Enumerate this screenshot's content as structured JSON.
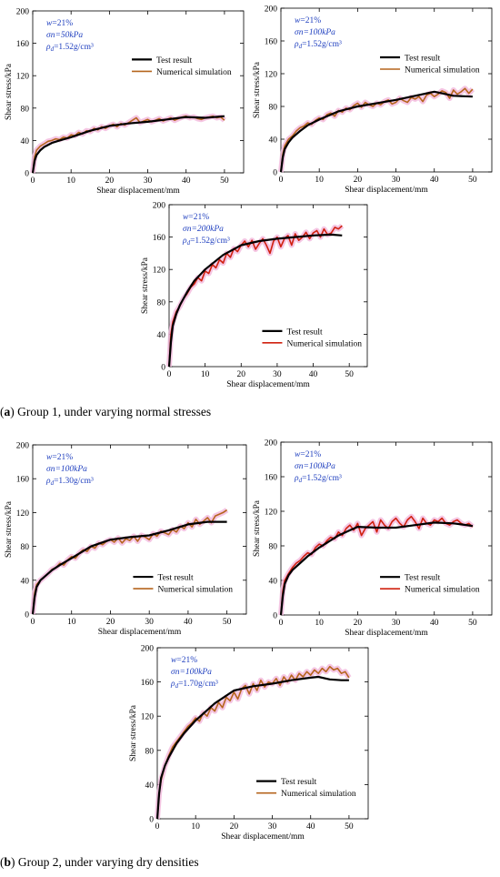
{
  "captions": {
    "a_letter": "a",
    "a_text": "Group 1, under varying normal stresses",
    "b_letter": "b",
    "b_text": "Group 2, under varying dry densities"
  },
  "colors": {
    "test": "#000000",
    "simulation": "#b5651d",
    "simulation_alt": "#d0200f",
    "shade": "#f2b8dc",
    "params": "#1f3fbf"
  },
  "chart_data": [
    {
      "id": "a1",
      "type": "line",
      "xlabel": "Shear displacement/mm",
      "ylabel": "Shear stress/kPa",
      "xlim": [
        0,
        55
      ],
      "ylim": [
        0,
        200
      ],
      "xticks": [
        "0",
        "10",
        "20",
        "30",
        "40",
        "50"
      ],
      "yticks": [
        "0",
        "40",
        "80",
        "120",
        "160",
        "200"
      ],
      "params": [
        "w=21%",
        "σn=50kPa",
        "ρd=1.52g/cm³"
      ],
      "legend": [
        "Test result",
        "Numerical simulation"
      ],
      "legend_position": "upper-right",
      "series": [
        {
          "name": "Test result",
          "role": "test",
          "x": [
            0,
            0.5,
            1,
            2,
            3,
            5,
            7,
            10,
            15,
            20,
            25,
            30,
            35,
            40,
            45,
            50
          ],
          "y": [
            0,
            15,
            22,
            28,
            32,
            37,
            40,
            44,
            52,
            58,
            61,
            63,
            66,
            69,
            68,
            70
          ]
        },
        {
          "name": "Numerical simulation",
          "role": "simulation",
          "x": [
            0,
            0.5,
            1,
            2,
            3,
            4,
            5,
            6,
            7,
            8,
            9,
            10,
            11,
            12,
            13,
            14,
            15,
            16,
            17,
            18,
            19,
            20,
            21,
            22,
            23,
            24,
            25,
            26,
            27,
            28,
            29,
            30,
            31,
            32,
            33,
            34,
            35,
            36,
            37,
            38,
            39,
            40,
            41,
            42,
            43,
            44,
            45,
            46,
            47,
            48,
            49,
            50
          ],
          "y": [
            0,
            20,
            28,
            33,
            36,
            39,
            40,
            42,
            41,
            44,
            43,
            47,
            46,
            50,
            48,
            52,
            51,
            55,
            53,
            57,
            55,
            58,
            60,
            57,
            61,
            59,
            62,
            65,
            68,
            62,
            64,
            66,
            63,
            65,
            67,
            64,
            66,
            68,
            65,
            67,
            69,
            70,
            68,
            69,
            67,
            66,
            68,
            69,
            70,
            68,
            69,
            65
          ]
        }
      ]
    },
    {
      "id": "a2",
      "type": "line",
      "xlabel": "Shear displacement/mm",
      "ylabel": "Shear stress/kPa",
      "xlim": [
        0,
        55
      ],
      "ylim": [
        0,
        200
      ],
      "xticks": [
        "0",
        "10",
        "20",
        "30",
        "40",
        "50"
      ],
      "yticks": [
        "0",
        "40",
        "80",
        "120",
        "160",
        "200"
      ],
      "params": [
        "w=21%",
        "σn=100kPa",
        "ρd=1.52g/cm³"
      ],
      "legend": [
        "Test result",
        "Numerical simulation"
      ],
      "legend_position": "upper-right",
      "series": [
        {
          "name": "Test result",
          "role": "test",
          "x": [
            0,
            0.5,
            1,
            2,
            3,
            5,
            7,
            10,
            15,
            20,
            25,
            30,
            35,
            40,
            42,
            45,
            50
          ],
          "y": [
            0,
            18,
            28,
            36,
            42,
            50,
            57,
            64,
            74,
            80,
            84,
            88,
            93,
            98,
            96,
            93,
            92
          ]
        },
        {
          "name": "Numerical simulation",
          "role": "simulation",
          "x": [
            0,
            0.5,
            1,
            2,
            3,
            4,
            5,
            6,
            7,
            8,
            9,
            10,
            11,
            12,
            13,
            14,
            15,
            16,
            17,
            18,
            19,
            20,
            21,
            22,
            23,
            24,
            25,
            26,
            27,
            28,
            29,
            30,
            31,
            32,
            33,
            34,
            35,
            36,
            37,
            38,
            39,
            40,
            41,
            42,
            43,
            44,
            45,
            46,
            47,
            48,
            49,
            50
          ],
          "y": [
            0,
            22,
            32,
            40,
            44,
            50,
            54,
            56,
            60,
            58,
            63,
            66,
            64,
            70,
            72,
            68,
            75,
            73,
            78,
            76,
            81,
            84,
            79,
            85,
            82,
            80,
            84,
            82,
            86,
            88,
            83,
            85,
            90,
            87,
            85,
            91,
            89,
            92,
            86,
            94,
            96,
            92,
            95,
            99,
            97,
            90,
            100,
            95,
            98,
            102,
            96,
            101
          ]
        }
      ]
    },
    {
      "id": "a3",
      "type": "line",
      "xlabel": "Shear displacement/mm",
      "ylabel": "Shear stress/kPa",
      "xlim": [
        0,
        55
      ],
      "ylim": [
        0,
        200
      ],
      "xticks": [
        "0",
        "10",
        "20",
        "30",
        "40",
        "50"
      ],
      "yticks": [
        "0",
        "40",
        "80",
        "120",
        "160",
        "200"
      ],
      "params": [
        "w=21%",
        "σn=200kPa",
        "ρd=1.52g/cm³"
      ],
      "legend": [
        "Test result",
        "Numerical simulation"
      ],
      "legend_position": "lower-right",
      "series": [
        {
          "name": "Test result",
          "role": "test",
          "x": [
            0,
            0.5,
            1,
            2,
            3,
            5,
            7,
            10,
            15,
            20,
            25,
            30,
            35,
            40,
            45,
            48
          ],
          "y": [
            0,
            30,
            50,
            65,
            76,
            92,
            106,
            120,
            138,
            150,
            155,
            158,
            160,
            162,
            163,
            162
          ]
        },
        {
          "name": "Numerical simulation",
          "role": "simulation_alt",
          "x": [
            0,
            0.5,
            1,
            2,
            3,
            4,
            5,
            6,
            7,
            8,
            9,
            10,
            11,
            12,
            13,
            14,
            15,
            16,
            17,
            18,
            19,
            20,
            21,
            22,
            23,
            24,
            25,
            26,
            27,
            28,
            29,
            30,
            31,
            32,
            33,
            34,
            35,
            36,
            37,
            38,
            39,
            40,
            41,
            42,
            43,
            44,
            45,
            46,
            47,
            48
          ],
          "y": [
            0,
            40,
            55,
            68,
            75,
            84,
            90,
            98,
            102,
            110,
            106,
            118,
            115,
            126,
            122,
            132,
            128,
            140,
            135,
            146,
            142,
            150,
            155,
            148,
            156,
            145,
            152,
            158,
            150,
            140,
            155,
            160,
            148,
            158,
            162,
            150,
            164,
            156,
            160,
            166,
            158,
            165,
            168,
            160,
            170,
            163,
            165,
            172,
            170,
            174
          ]
        }
      ]
    },
    {
      "id": "b1",
      "type": "line",
      "xlabel": "Shear displacement/mm",
      "ylabel": "Shear stress/kPa",
      "xlim": [
        0,
        55
      ],
      "ylim": [
        0,
        200
      ],
      "xticks": [
        "0",
        "10",
        "20",
        "30",
        "40",
        "50"
      ],
      "yticks": [
        "0",
        "40",
        "80",
        "120",
        "160",
        "200"
      ],
      "params": [
        "w=21%",
        "σn=100kPa",
        "ρd=1.30g/cm³"
      ],
      "legend": [
        "Test result",
        "Numerical simulation"
      ],
      "legend_position": "lower-right",
      "series": [
        {
          "name": "Test result",
          "role": "test",
          "x": [
            0,
            0.5,
            1,
            2,
            3,
            5,
            7,
            10,
            15,
            20,
            25,
            30,
            35,
            40,
            45,
            50
          ],
          "y": [
            0,
            20,
            32,
            40,
            44,
            52,
            58,
            66,
            80,
            88,
            91,
            93,
            99,
            106,
            109,
            109
          ]
        },
        {
          "name": "Numerical simulation",
          "role": "simulation",
          "x": [
            0,
            0.5,
            1,
            2,
            3,
            4,
            5,
            6,
            7,
            8,
            9,
            10,
            11,
            12,
            13,
            14,
            15,
            16,
            17,
            18,
            19,
            20,
            21,
            22,
            23,
            24,
            25,
            26,
            27,
            28,
            29,
            30,
            31,
            32,
            33,
            34,
            35,
            36,
            37,
            38,
            39,
            40,
            41,
            42,
            43,
            44,
            45,
            46,
            47,
            48,
            49,
            50
          ],
          "y": [
            0,
            25,
            35,
            40,
            44,
            48,
            53,
            55,
            60,
            58,
            64,
            68,
            66,
            72,
            76,
            74,
            80,
            78,
            84,
            82,
            86,
            88,
            85,
            90,
            84,
            89,
            87,
            92,
            86,
            93,
            91,
            88,
            95,
            92,
            98,
            96,
            94,
            100,
            97,
            104,
            101,
            108,
            103,
            112,
            106,
            110,
            114,
            108,
            116,
            118,
            120,
            123
          ]
        }
      ]
    },
    {
      "id": "b2",
      "type": "line",
      "xlabel": "Shear displacement/mm",
      "ylabel": "Shear stress/kPa",
      "xlim": [
        0,
        55
      ],
      "ylim": [
        0,
        200
      ],
      "xticks": [
        "0",
        "10",
        "20",
        "30",
        "40",
        "50"
      ],
      "yticks": [
        "0",
        "40",
        "80",
        "120",
        "160",
        "200"
      ],
      "params": [
        "w=21%",
        "σn=100kPa",
        "ρd=1.52g/cm³"
      ],
      "legend": [
        "Test result",
        "Numerical simulation"
      ],
      "legend_position": "lower-right",
      "series": [
        {
          "name": "Test result",
          "role": "test",
          "x": [
            0,
            0.5,
            1,
            2,
            3,
            5,
            7,
            10,
            15,
            18,
            20,
            25,
            30,
            35,
            40,
            45,
            50
          ],
          "y": [
            0,
            22,
            36,
            46,
            52,
            60,
            68,
            78,
            92,
            98,
            102,
            101,
            101,
            104,
            107,
            106,
            103
          ]
        },
        {
          "name": "Numerical simulation",
          "role": "simulation_alt",
          "x": [
            0,
            0.5,
            1,
            2,
            3,
            4,
            5,
            6,
            7,
            8,
            9,
            10,
            11,
            12,
            13,
            14,
            15,
            16,
            17,
            18,
            19,
            20,
            21,
            22,
            23,
            24,
            25,
            26,
            27,
            28,
            29,
            30,
            31,
            32,
            33,
            34,
            35,
            36,
            37,
            38,
            39,
            40,
            41,
            42,
            43,
            44,
            45,
            46,
            47,
            48,
            49,
            50
          ],
          "y": [
            0,
            28,
            40,
            48,
            55,
            60,
            63,
            68,
            72,
            70,
            78,
            82,
            80,
            86,
            90,
            88,
            96,
            92,
            100,
            104,
            98,
            106,
            92,
            100,
            104,
            108,
            96,
            110,
            104,
            100,
            108,
            112,
            106,
            102,
            110,
            114,
            108,
            100,
            112,
            106,
            104,
            110,
            108,
            112,
            106,
            104,
            108,
            110,
            106,
            104,
            106,
            102
          ]
        }
      ]
    },
    {
      "id": "b3",
      "type": "line",
      "xlabel": "Shear displacement/mm",
      "ylabel": "Shear stress/kPa",
      "xlim": [
        0,
        55
      ],
      "ylim": [
        0,
        200
      ],
      "xticks": [
        "0",
        "10",
        "20",
        "30",
        "40",
        "50"
      ],
      "yticks": [
        "0",
        "40",
        "80",
        "120",
        "160",
        "200"
      ],
      "params": [
        "w=21%",
        "σn=100kPa",
        "ρd=1.70g/cm³"
      ],
      "legend": [
        "Test result",
        "Numerical simulation"
      ],
      "legend_position": "lower-right",
      "series": [
        {
          "name": "Test result",
          "role": "test",
          "x": [
            0,
            0.5,
            1,
            2,
            3,
            5,
            7,
            10,
            15,
            20,
            25,
            30,
            35,
            40,
            42,
            45,
            48,
            50
          ],
          "y": [
            0,
            30,
            48,
            62,
            72,
            88,
            100,
            115,
            135,
            150,
            155,
            158,
            162,
            165,
            166,
            163,
            162,
            162
          ]
        },
        {
          "name": "Numerical simulation",
          "role": "simulation",
          "x": [
            0,
            0.5,
            1,
            2,
            3,
            4,
            5,
            6,
            7,
            8,
            9,
            10,
            11,
            12,
            13,
            14,
            15,
            16,
            17,
            18,
            19,
            20,
            21,
            22,
            23,
            24,
            25,
            26,
            27,
            28,
            29,
            30,
            31,
            32,
            33,
            34,
            35,
            36,
            37,
            38,
            39,
            40,
            41,
            42,
            43,
            44,
            45,
            46,
            47,
            48,
            49,
            50
          ],
          "y": [
            0,
            30,
            45,
            62,
            74,
            84,
            90,
            96,
            102,
            108,
            112,
            118,
            114,
            124,
            120,
            130,
            126,
            136,
            130,
            142,
            138,
            148,
            140,
            152,
            156,
            146,
            158,
            150,
            162,
            154,
            160,
            158,
            164,
            156,
            166,
            160,
            168,
            162,
            170,
            166,
            172,
            168,
            174,
            170,
            176,
            172,
            178,
            174,
            176,
            170,
            172,
            165
          ]
        }
      ]
    }
  ]
}
